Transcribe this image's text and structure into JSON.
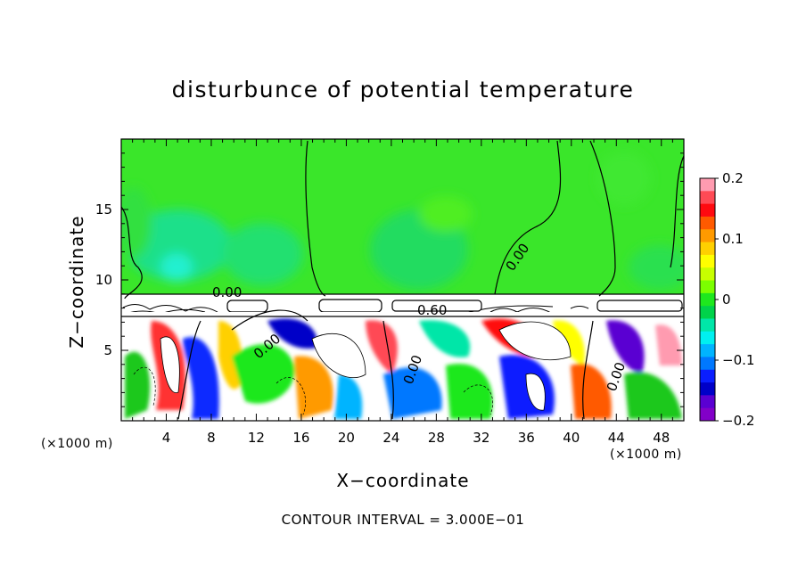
{
  "chart_data": {
    "type": "heatmap",
    "title": "disturbunce of potential temperature",
    "xlabel": "X−coordinate",
    "ylabel": "Z−coordinate",
    "x_unit": "(×1000 m)",
    "xlim": [
      0,
      50
    ],
    "ylim": [
      0,
      20
    ],
    "x_ticks": [
      "4",
      "8",
      "12",
      "16",
      "20",
      "24",
      "28",
      "32",
      "36",
      "40",
      "44",
      "48"
    ],
    "y_ticks": [
      "5",
      "10",
      "15"
    ],
    "colorbar": {
      "range": [
        -0.2,
        0.2
      ],
      "tick_labels": [
        "0.2",
        "0.1",
        "0",
        "−0.1",
        "−0.2"
      ],
      "colors": [
        "#ff9bb0",
        "#ff4a55",
        "#ff0a10",
        "#ff5a00",
        "#ff9a00",
        "#ffd000",
        "#ffff00",
        "#c8ff00",
        "#7cff00",
        "#1ee81e",
        "#00d24a",
        "#00e6a8",
        "#00f0f0",
        "#00b4ff",
        "#0078ff",
        "#0a1eff",
        "#0000c8",
        "#5a00d2",
        "#8200c8"
      ]
    },
    "contour_labels": [
      "0.00",
      "0.00",
      "0.00",
      "0.60",
      "0.00",
      "0.00"
    ],
    "annotation": "CONTOUR INTERVAL = 3.000E−01",
    "grid": false
  }
}
